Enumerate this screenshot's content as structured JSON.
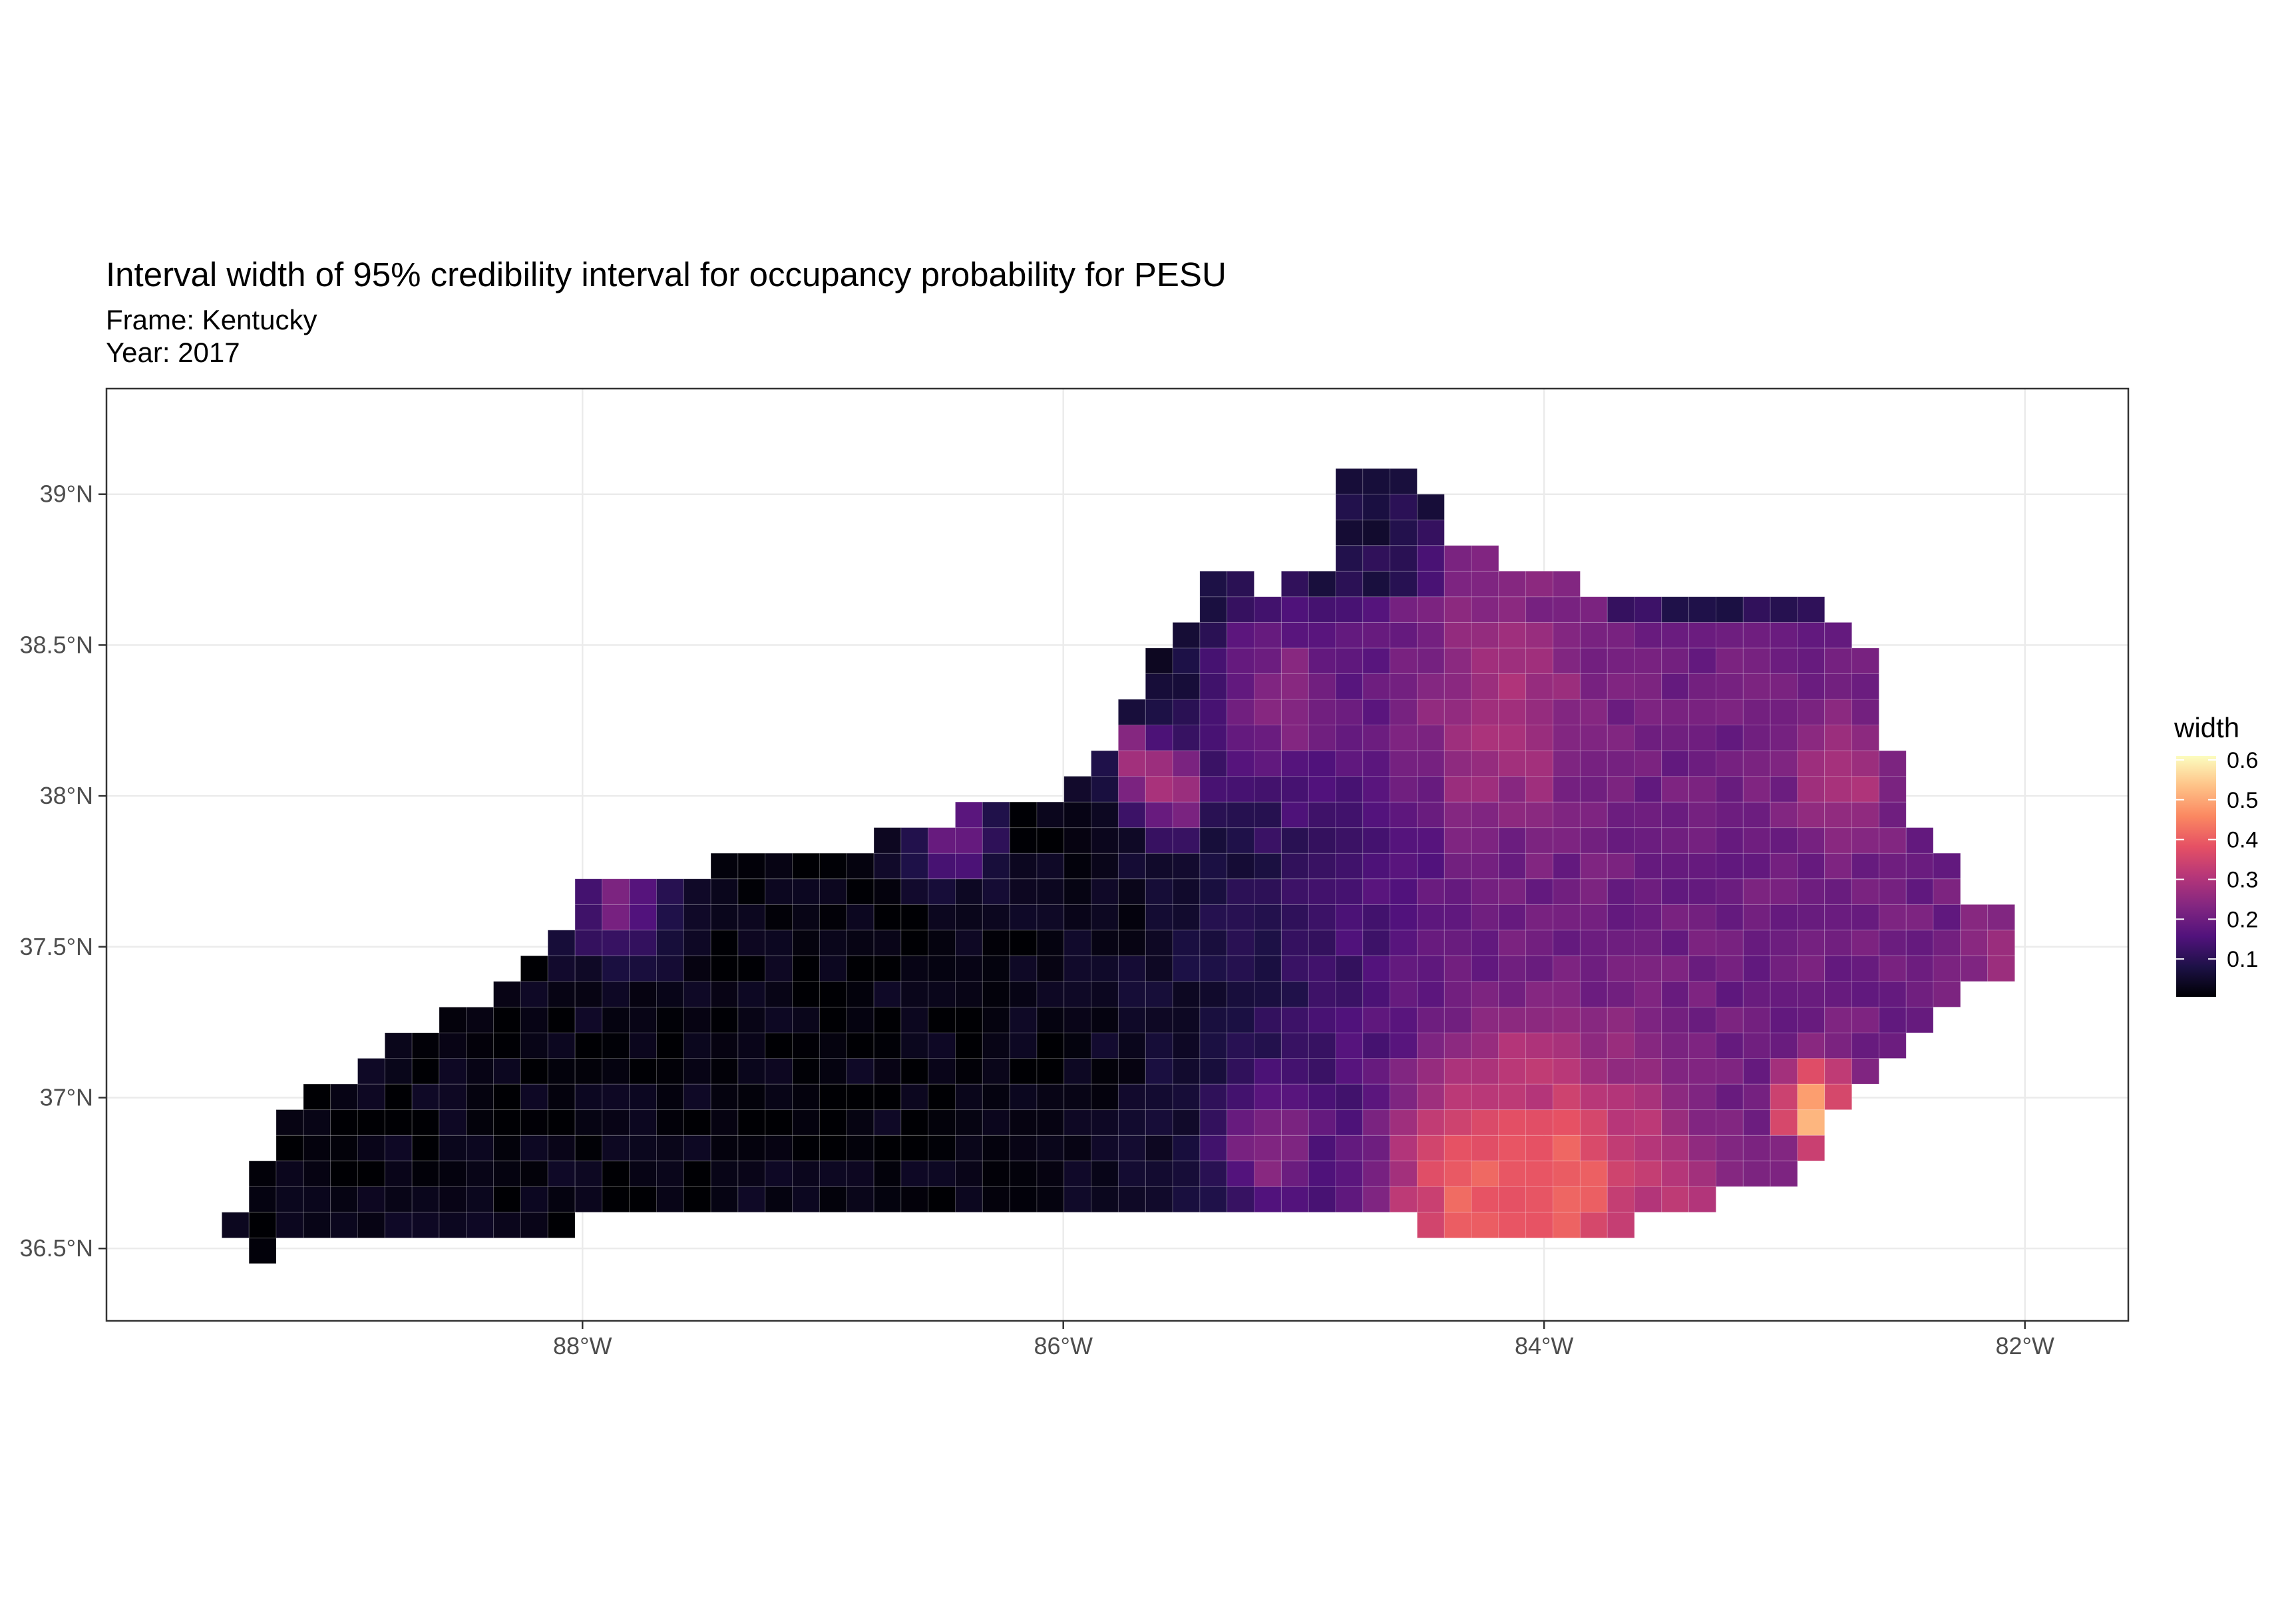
{
  "title": "Interval width of 95% credibility interval for occupancy probability for PESU",
  "subtitle_frame": "Frame: Kentucky",
  "subtitle_year": "Year: 2017",
  "chart_data": {
    "type": "heatmap",
    "x_ticks": [
      {
        "value": -88,
        "label": "88°W"
      },
      {
        "value": -86,
        "label": "86°W"
      },
      {
        "value": -84,
        "label": "84°W"
      },
      {
        "value": -82,
        "label": "82°W"
      }
    ],
    "y_ticks": [
      {
        "value": 36.5,
        "label": "36.5°N"
      },
      {
        "value": 37.0,
        "label": "37°N"
      },
      {
        "value": 37.5,
        "label": "37.5°N"
      },
      {
        "value": 38.0,
        "label": "38°N"
      },
      {
        "value": 38.5,
        "label": "38.5°N"
      },
      {
        "value": 39.0,
        "label": "39°N"
      }
    ],
    "xlim": [
      -89.98,
      -81.57
    ],
    "ylim": [
      36.26,
      39.35
    ],
    "cell_size_deg": [
      0.113,
      0.085
    ],
    "grid": true,
    "legend": {
      "title": "width",
      "position": "right",
      "ticks": [
        "0.1",
        "0.2",
        "0.3",
        "0.4",
        "0.5",
        "0.6"
      ],
      "range": [
        0.005,
        0.61
      ],
      "palette": "magma",
      "palette_stops": [
        "#000004",
        "#1D1147",
        "#51127C",
        "#822681",
        "#B63679",
        "#E65164",
        "#FB8861",
        "#FEC287",
        "#FCFDBF"
      ]
    },
    "region": {
      "name": "Kentucky",
      "outline_lonlat": [
        [
          -89.42,
          36.45
        ],
        [
          -89.3,
          36.5
        ],
        [
          -88.05,
          36.5
        ],
        [
          -88.05,
          36.62
        ],
        [
          -86.5,
          36.62
        ],
        [
          -86.0,
          36.62
        ],
        [
          -85.2,
          36.62
        ],
        [
          -84.65,
          36.58
        ],
        [
          -83.7,
          36.55
        ],
        [
          -83.4,
          36.62
        ],
        [
          -83.1,
          36.7
        ],
        [
          -82.95,
          36.72
        ],
        [
          -82.75,
          36.98
        ],
        [
          -82.55,
          37.12
        ],
        [
          -82.35,
          37.28
        ],
        [
          -82.05,
          37.45
        ],
        [
          -81.97,
          37.55
        ],
        [
          -82.25,
          37.7
        ],
        [
          -82.5,
          37.95
        ],
        [
          -82.58,
          38.2
        ],
        [
          -82.62,
          38.42
        ],
        [
          -82.85,
          38.62
        ],
        [
          -83.1,
          38.68
        ],
        [
          -83.65,
          38.62
        ],
        [
          -83.95,
          38.75
        ],
        [
          -84.3,
          38.8
        ],
        [
          -84.45,
          38.98
        ],
        [
          -84.62,
          39.08
        ],
        [
          -84.82,
          39.12
        ],
        [
          -84.85,
          38.78
        ],
        [
          -85.15,
          38.7
        ],
        [
          -85.4,
          38.74
        ],
        [
          -85.6,
          38.45
        ],
        [
          -85.78,
          38.25
        ],
        [
          -85.92,
          38.05
        ],
        [
          -86.1,
          37.98
        ],
        [
          -86.32,
          38.0
        ],
        [
          -86.55,
          37.9
        ],
        [
          -86.95,
          37.8
        ],
        [
          -87.2,
          37.8
        ],
        [
          -87.6,
          37.75
        ],
        [
          -87.95,
          37.72
        ],
        [
          -88.1,
          37.5
        ],
        [
          -88.3,
          37.42
        ],
        [
          -88.45,
          37.3
        ],
        [
          -88.9,
          37.12
        ],
        [
          -89.1,
          37.03
        ],
        [
          -89.25,
          36.92
        ],
        [
          -89.35,
          36.75
        ],
        [
          -89.48,
          36.58
        ]
      ]
    },
    "hotspots": [
      {
        "lon": -82.92,
        "lat": 36.91,
        "width": 0.6,
        "spread": 0.05
      },
      {
        "lon": -82.9,
        "lat": 37.0,
        "width": 0.5,
        "spread": 0.07
      },
      {
        "lon": -82.85,
        "lat": 37.05,
        "width": 0.4,
        "spread": 0.08
      },
      {
        "lon": -83.95,
        "lat": 36.68,
        "width": 0.42,
        "spread": 0.28
      },
      {
        "lon": -84.3,
        "lat": 36.66,
        "width": 0.4,
        "spread": 0.25
      },
      {
        "lon": -84.15,
        "lat": 36.88,
        "width": 0.33,
        "spread": 0.25
      },
      {
        "lon": -83.55,
        "lat": 36.7,
        "width": 0.32,
        "spread": 0.2
      },
      {
        "lon": -84.2,
        "lat": 38.25,
        "width": 0.3,
        "spread": 0.25
      },
      {
        "lon": -82.75,
        "lat": 38.05,
        "width": 0.3,
        "spread": 0.14
      },
      {
        "lon": -85.55,
        "lat": 38.02,
        "width": 0.3,
        "spread": 0.1
      },
      {
        "lon": -85.7,
        "lat": 38.12,
        "width": 0.3,
        "spread": 0.08
      },
      {
        "lon": -84.25,
        "lat": 38.58,
        "width": 0.25,
        "spread": 0.2
      },
      {
        "lon": -85.1,
        "lat": 38.32,
        "width": 0.25,
        "spread": 0.2
      },
      {
        "lon": -82.05,
        "lat": 37.5,
        "width": 0.27,
        "spread": 0.12
      },
      {
        "lon": -87.85,
        "lat": 37.67,
        "width": 0.22,
        "spread": 0.15
      },
      {
        "lon": -86.45,
        "lat": 37.88,
        "width": 0.2,
        "spread": 0.12
      },
      {
        "lon": -85.15,
        "lat": 36.85,
        "width": 0.25,
        "spread": 0.15
      }
    ]
  }
}
